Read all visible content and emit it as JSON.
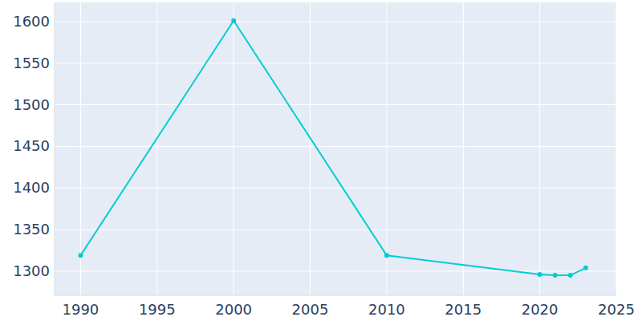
{
  "chart_data": {
    "type": "line",
    "x": [
      1990,
      2000,
      2010,
      2020,
      2021,
      2022,
      2023
    ],
    "values": [
      1319,
      1601,
      1319,
      1296,
      1295,
      1295,
      1304
    ],
    "color": "#00cdd1",
    "marker": "circle",
    "xlim": [
      1988.3,
      2025
    ],
    "xticks": [
      1990,
      1995,
      2000,
      2005,
      2010,
      2015,
      2020,
      2025
    ],
    "ylim": [
      1271,
      1623
    ],
    "yticks": [
      1300,
      1350,
      1400,
      1450,
      1500,
      1550,
      1600
    ],
    "grid": true
  }
}
